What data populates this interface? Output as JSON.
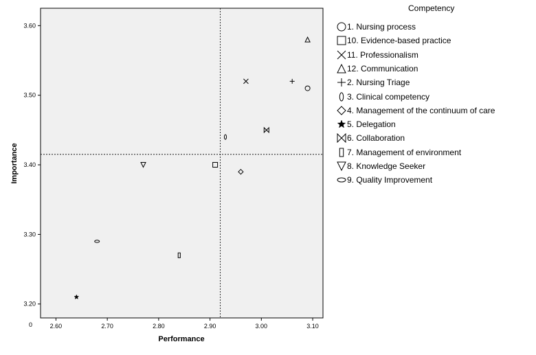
{
  "chart_data": {
    "type": "scatter",
    "title": "",
    "xlabel": "Performance",
    "ylabel": "Importance",
    "xlim": [
      2.57,
      3.12
    ],
    "ylim": [
      3.18,
      3.625
    ],
    "x_ticks": [
      "2.60",
      "2.70",
      "2.80",
      "2.90",
      "3.00",
      "3.10"
    ],
    "y_ticks": [
      "3.20",
      "3.30",
      "3.40",
      "3.50",
      "3.60"
    ],
    "y_axis_corner_label": "0",
    "reference_lines": {
      "x": 2.92,
      "y": 3.415
    },
    "grid": false,
    "legend_position": "right",
    "plot_background": "#f0f0f0",
    "legend_title": "Competency",
    "series": [
      {
        "name": "1. Nursing process",
        "marker": "circle",
        "x": 3.09,
        "y": 3.51
      },
      {
        "name": "10. Evidence-based practice",
        "marker": "square",
        "x": 2.91,
        "y": 3.4
      },
      {
        "name": "11. Professionalism",
        "marker": "x",
        "x": 2.97,
        "y": 3.52
      },
      {
        "name": "12. Communication",
        "marker": "triangle-up",
        "x": 3.09,
        "y": 3.58
      },
      {
        "name": "2. Nursing Triage",
        "marker": "plus",
        "x": 3.06,
        "y": 3.52
      },
      {
        "name": "3. Clinical competency",
        "marker": "tall-ellipse",
        "x": 2.93,
        "y": 3.44
      },
      {
        "name": "4. Management of the continuum of care",
        "marker": "diamond",
        "x": 2.96,
        "y": 3.39
      },
      {
        "name": "5. Delegation",
        "marker": "star",
        "x": 2.64,
        "y": 3.21
      },
      {
        "name": "6. Collaboration",
        "marker": "bowtie",
        "x": 3.01,
        "y": 3.45
      },
      {
        "name": "7. Management of environment",
        "marker": "tall-rect",
        "x": 2.84,
        "y": 3.27
      },
      {
        "name": "8. Knowledge Seeker",
        "marker": "triangle-down",
        "x": 2.77,
        "y": 3.4
      },
      {
        "name": "9. Quality Improvement",
        "marker": "wide-ellipse",
        "x": 2.68,
        "y": 3.29
      }
    ]
  }
}
